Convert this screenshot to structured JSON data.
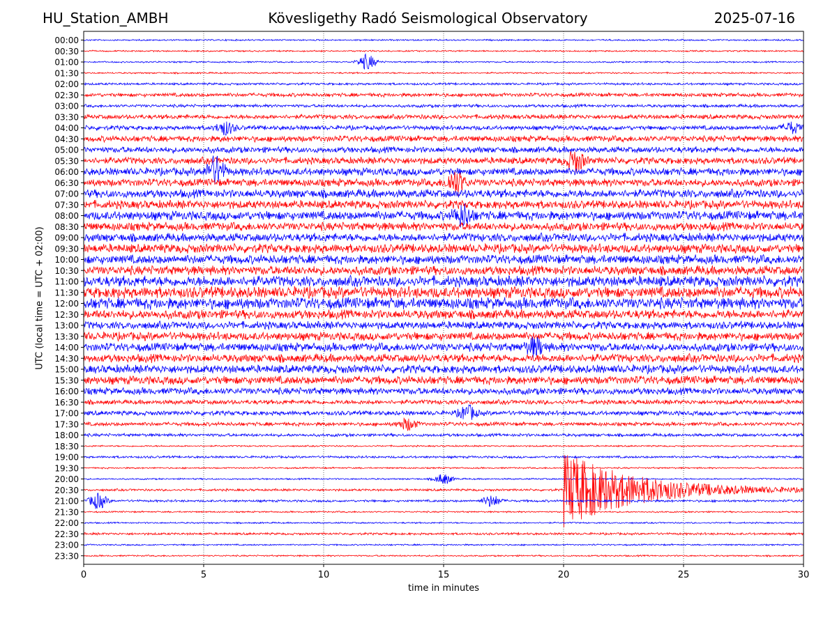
{
  "header": {
    "station": "HU_Station_AMBH",
    "observatory": "Kövesligethy Radó Seismological Observatory",
    "date": "2025-07-16"
  },
  "chart_data": {
    "type": "line",
    "title": "Kövesligethy Radó Seismological Observatory",
    "xlabel": "time in minutes",
    "ylabel": "UTC (local time = UTC + 02:00)",
    "xlim": [
      0,
      30
    ],
    "xticks": [
      0,
      5,
      10,
      15,
      20,
      25,
      30
    ],
    "xtick_labels": [
      "0",
      "5",
      "10",
      "15",
      "20",
      "25",
      "30"
    ],
    "grid": "vertical dotted lines at each x tick",
    "colors": {
      "even_rows": "#0000ff",
      "odd_rows": "#ff0000"
    },
    "rows": [
      "00:00",
      "00:30",
      "01:00",
      "01:30",
      "02:00",
      "02:30",
      "03:00",
      "03:30",
      "04:00",
      "04:30",
      "05:00",
      "05:30",
      "06:00",
      "06:30",
      "07:00",
      "07:30",
      "08:00",
      "08:30",
      "09:00",
      "09:30",
      "10:00",
      "10:30",
      "11:00",
      "11:30",
      "12:00",
      "12:30",
      "13:00",
      "13:30",
      "14:00",
      "14:30",
      "15:00",
      "15:30",
      "16:00",
      "16:30",
      "17:00",
      "17:30",
      "18:00",
      "18:30",
      "19:00",
      "19:30",
      "20:00",
      "20:30",
      "21:00",
      "21:30",
      "22:00",
      "22:30",
      "23:00",
      "23:30"
    ],
    "noise_amplitude": [
      0.1,
      0.1,
      0.1,
      0.1,
      0.15,
      0.25,
      0.2,
      0.3,
      0.3,
      0.4,
      0.4,
      0.45,
      0.5,
      0.5,
      0.55,
      0.55,
      0.6,
      0.55,
      0.55,
      0.6,
      0.6,
      0.6,
      0.7,
      0.75,
      0.75,
      0.6,
      0.5,
      0.55,
      0.55,
      0.55,
      0.55,
      0.55,
      0.45,
      0.3,
      0.3,
      0.25,
      0.2,
      0.1,
      0.15,
      0.1,
      0.1,
      0.15,
      0.15,
      0.1,
      0.1,
      0.15,
      0.1,
      0.1
    ],
    "events": [
      {
        "row": "01:00",
        "minute": 11.8,
        "amplitude": 1.2
      },
      {
        "row": "04:00",
        "minute": 5.9,
        "amplitude": 1.0
      },
      {
        "row": "04:00",
        "minute": 29.5,
        "amplitude": 0.8
      },
      {
        "row": "06:00",
        "minute": 5.5,
        "amplitude": 2.2
      },
      {
        "row": "06:30",
        "minute": 15.5,
        "amplitude": 1.8
      },
      {
        "row": "08:00",
        "minute": 15.8,
        "amplitude": 1.6
      },
      {
        "row": "05:30",
        "minute": 20.5,
        "amplitude": 1.6
      },
      {
        "row": "14:00",
        "minute": 18.8,
        "amplitude": 1.3
      },
      {
        "row": "17:00",
        "minute": 16.0,
        "amplitude": 1.1
      },
      {
        "row": "17:30",
        "minute": 13.5,
        "amplitude": 0.9
      },
      {
        "row": "20:00",
        "minute": 15.0,
        "amplitude": 0.8
      },
      {
        "row": "21:00",
        "minute": 0.6,
        "amplitude": 1.2
      },
      {
        "row": "21:00",
        "minute": 17.0,
        "amplitude": 0.9
      },
      {
        "row": "20:30",
        "minute": 20.0,
        "amplitude": 6.0,
        "duration_minutes": 9.0
      }
    ]
  }
}
